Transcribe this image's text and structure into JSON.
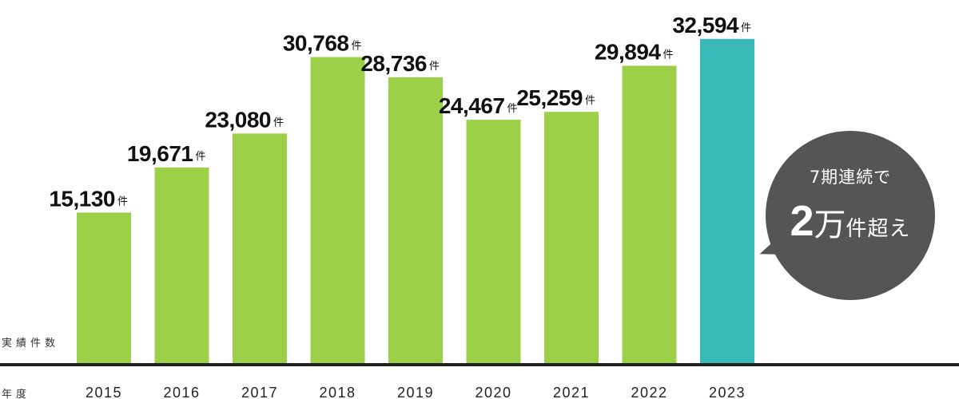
{
  "chart_data": {
    "type": "bar",
    "categories": [
      "2015",
      "2016",
      "2017",
      "2018",
      "2019",
      "2020",
      "2021",
      "2022",
      "2023"
    ],
    "values": [
      15130,
      19671,
      23080,
      30768,
      28736,
      24467,
      25259,
      29894,
      32594
    ],
    "value_labels": [
      "15,130",
      "19,671",
      "23,080",
      "30,768",
      "28,736",
      "24,467",
      "25,259",
      "29,894",
      "32,594"
    ],
    "value_unit": "件",
    "y_side_label": "実績件数",
    "x_side_label": "年度",
    "ylim": [
      0,
      34500
    ],
    "grid": false,
    "colors": {
      "bar": "#9bd048",
      "highlight": "#38b8b6",
      "axis": "#222222"
    },
    "highlight_index": 8
  },
  "callout": {
    "line1": "7期連続で",
    "number": "2",
    "unit_man": "万",
    "rest": "件超え",
    "color": "#555555"
  }
}
